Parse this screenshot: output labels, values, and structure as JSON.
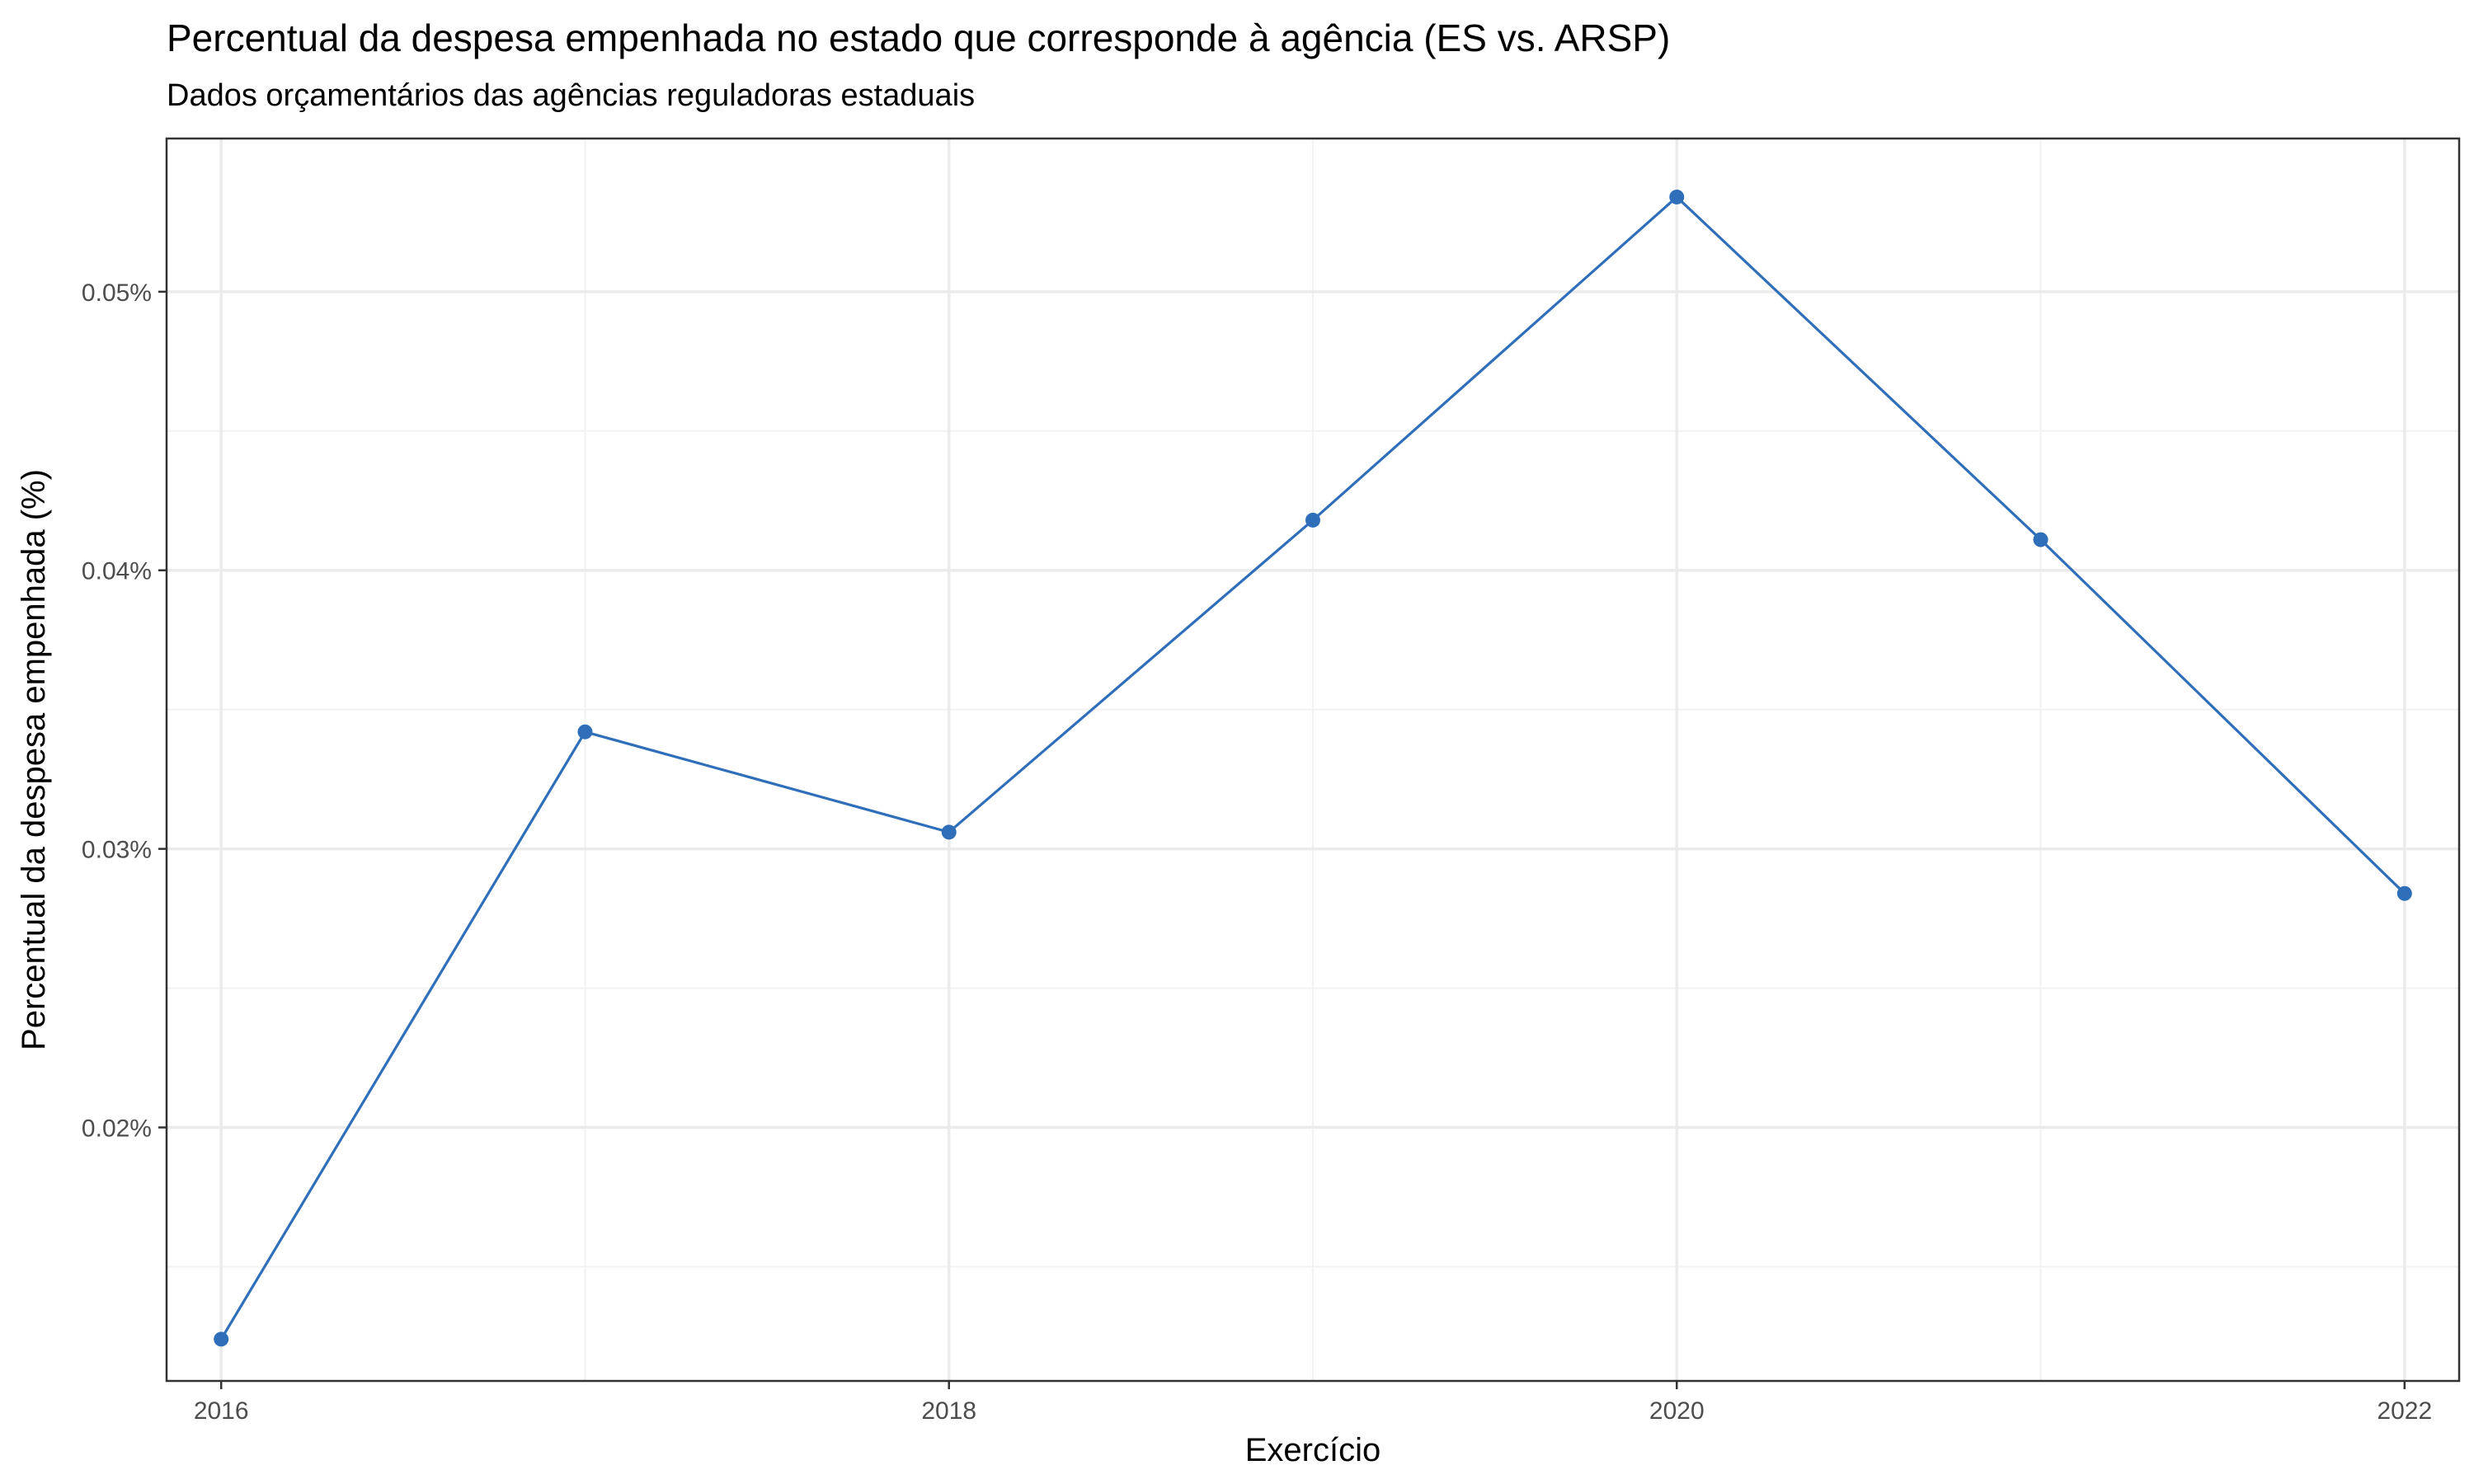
{
  "chart_data": {
    "type": "line",
    "title": "Percentual da despesa empenhada no estado que corresponde à agência (ES vs. ARSP)",
    "subtitle": "Dados orçamentários das agências reguladoras estaduais",
    "xlabel": "Exercício",
    "ylabel": "Percentual da despesa empenhada (%)",
    "xlim": [
      2015.85,
      2022.15
    ],
    "ylim": [
      0.0109,
      0.0555
    ],
    "x_ticks": [
      2016,
      2018,
      2020,
      2022
    ],
    "x_tick_labels": [
      "2016",
      "2018",
      "2020",
      "2022"
    ],
    "x_minor_ticks": [
      2017,
      2019,
      2021
    ],
    "y_ticks": [
      0.02,
      0.03,
      0.04,
      0.05
    ],
    "y_tick_labels": [
      "0.02%",
      "0.03%",
      "0.04%",
      "0.05%"
    ],
    "y_minor_ticks": [
      0.015,
      0.025,
      0.035,
      0.045
    ],
    "grid": true,
    "legend": "none",
    "series": [
      {
        "name": "ES vs. ARSP",
        "color": "#2f6fba",
        "x": [
          2016,
          2017,
          2018,
          2019,
          2020,
          2021,
          2022
        ],
        "values": [
          0.0124,
          0.0342,
          0.0306,
          0.0418,
          0.0534,
          0.0411,
          0.0284
        ]
      }
    ]
  }
}
